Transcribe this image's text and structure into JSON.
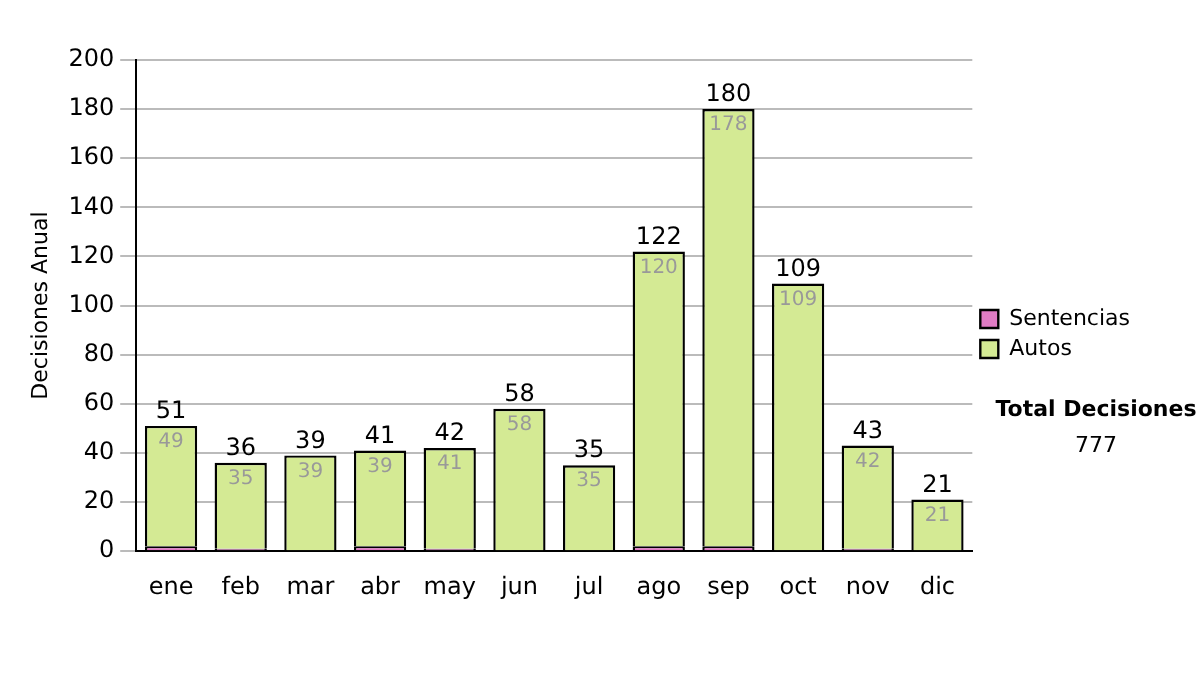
{
  "chart_data": {
    "type": "bar",
    "stacked": true,
    "ylabel": "Decisiones Anual",
    "categories": [
      "ene",
      "feb",
      "mar",
      "abr",
      "may",
      "jun",
      "jul",
      "ago",
      "sep",
      "oct",
      "nov",
      "dic"
    ],
    "series": [
      {
        "name": "Sentencias",
        "color": "#e07cc4",
        "values": [
          2,
          1,
          0,
          2,
          1,
          0,
          0,
          2,
          2,
          0,
          1,
          0
        ]
      },
      {
        "name": "Autos",
        "color": "#d4ea94",
        "values": [
          49,
          35,
          39,
          39,
          41,
          58,
          35,
          120,
          178,
          109,
          42,
          21
        ],
        "value_labels": [
          "49",
          "35",
          "39",
          "39",
          "41",
          "58",
          "35",
          "120",
          "178",
          "109",
          "42",
          "21"
        ]
      }
    ],
    "totals": [
      "51",
      "36",
      "39",
      "41",
      "42",
      "58",
      "35",
      "122",
      "180",
      "109",
      "43",
      "21"
    ],
    "ylim": [
      0,
      200
    ],
    "yticks": [
      0,
      20,
      40,
      60,
      80,
      100,
      120,
      140,
      160,
      180,
      200
    ],
    "grid": "y",
    "legend": "right",
    "annotations": [
      "Total Decisiones",
      "777"
    ]
  }
}
